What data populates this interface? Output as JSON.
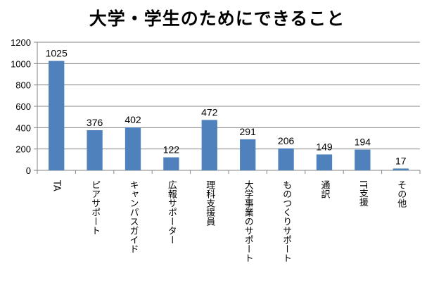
{
  "chart_data": {
    "type": "bar",
    "title": "大学・学生のためにできること",
    "xlabel": "",
    "ylabel": "",
    "categories": [
      "TA",
      "ピアサポート",
      "キャンパスガイド",
      "広報サポーター",
      "理科支援員",
      "大学事業のサポート",
      "ものつくりサポート",
      "通訳",
      "IT支援",
      "その他"
    ],
    "values": [
      1025,
      376,
      402,
      122,
      472,
      291,
      206,
      149,
      194,
      17
    ],
    "ylim": [
      0,
      1200
    ],
    "yticks": [
      0,
      200,
      400,
      600,
      800,
      1000,
      1200
    ],
    "grid": true,
    "legend": "none",
    "bar_color": "#4f81bd",
    "grid_color": "#868686",
    "axis_color": "#868686"
  }
}
